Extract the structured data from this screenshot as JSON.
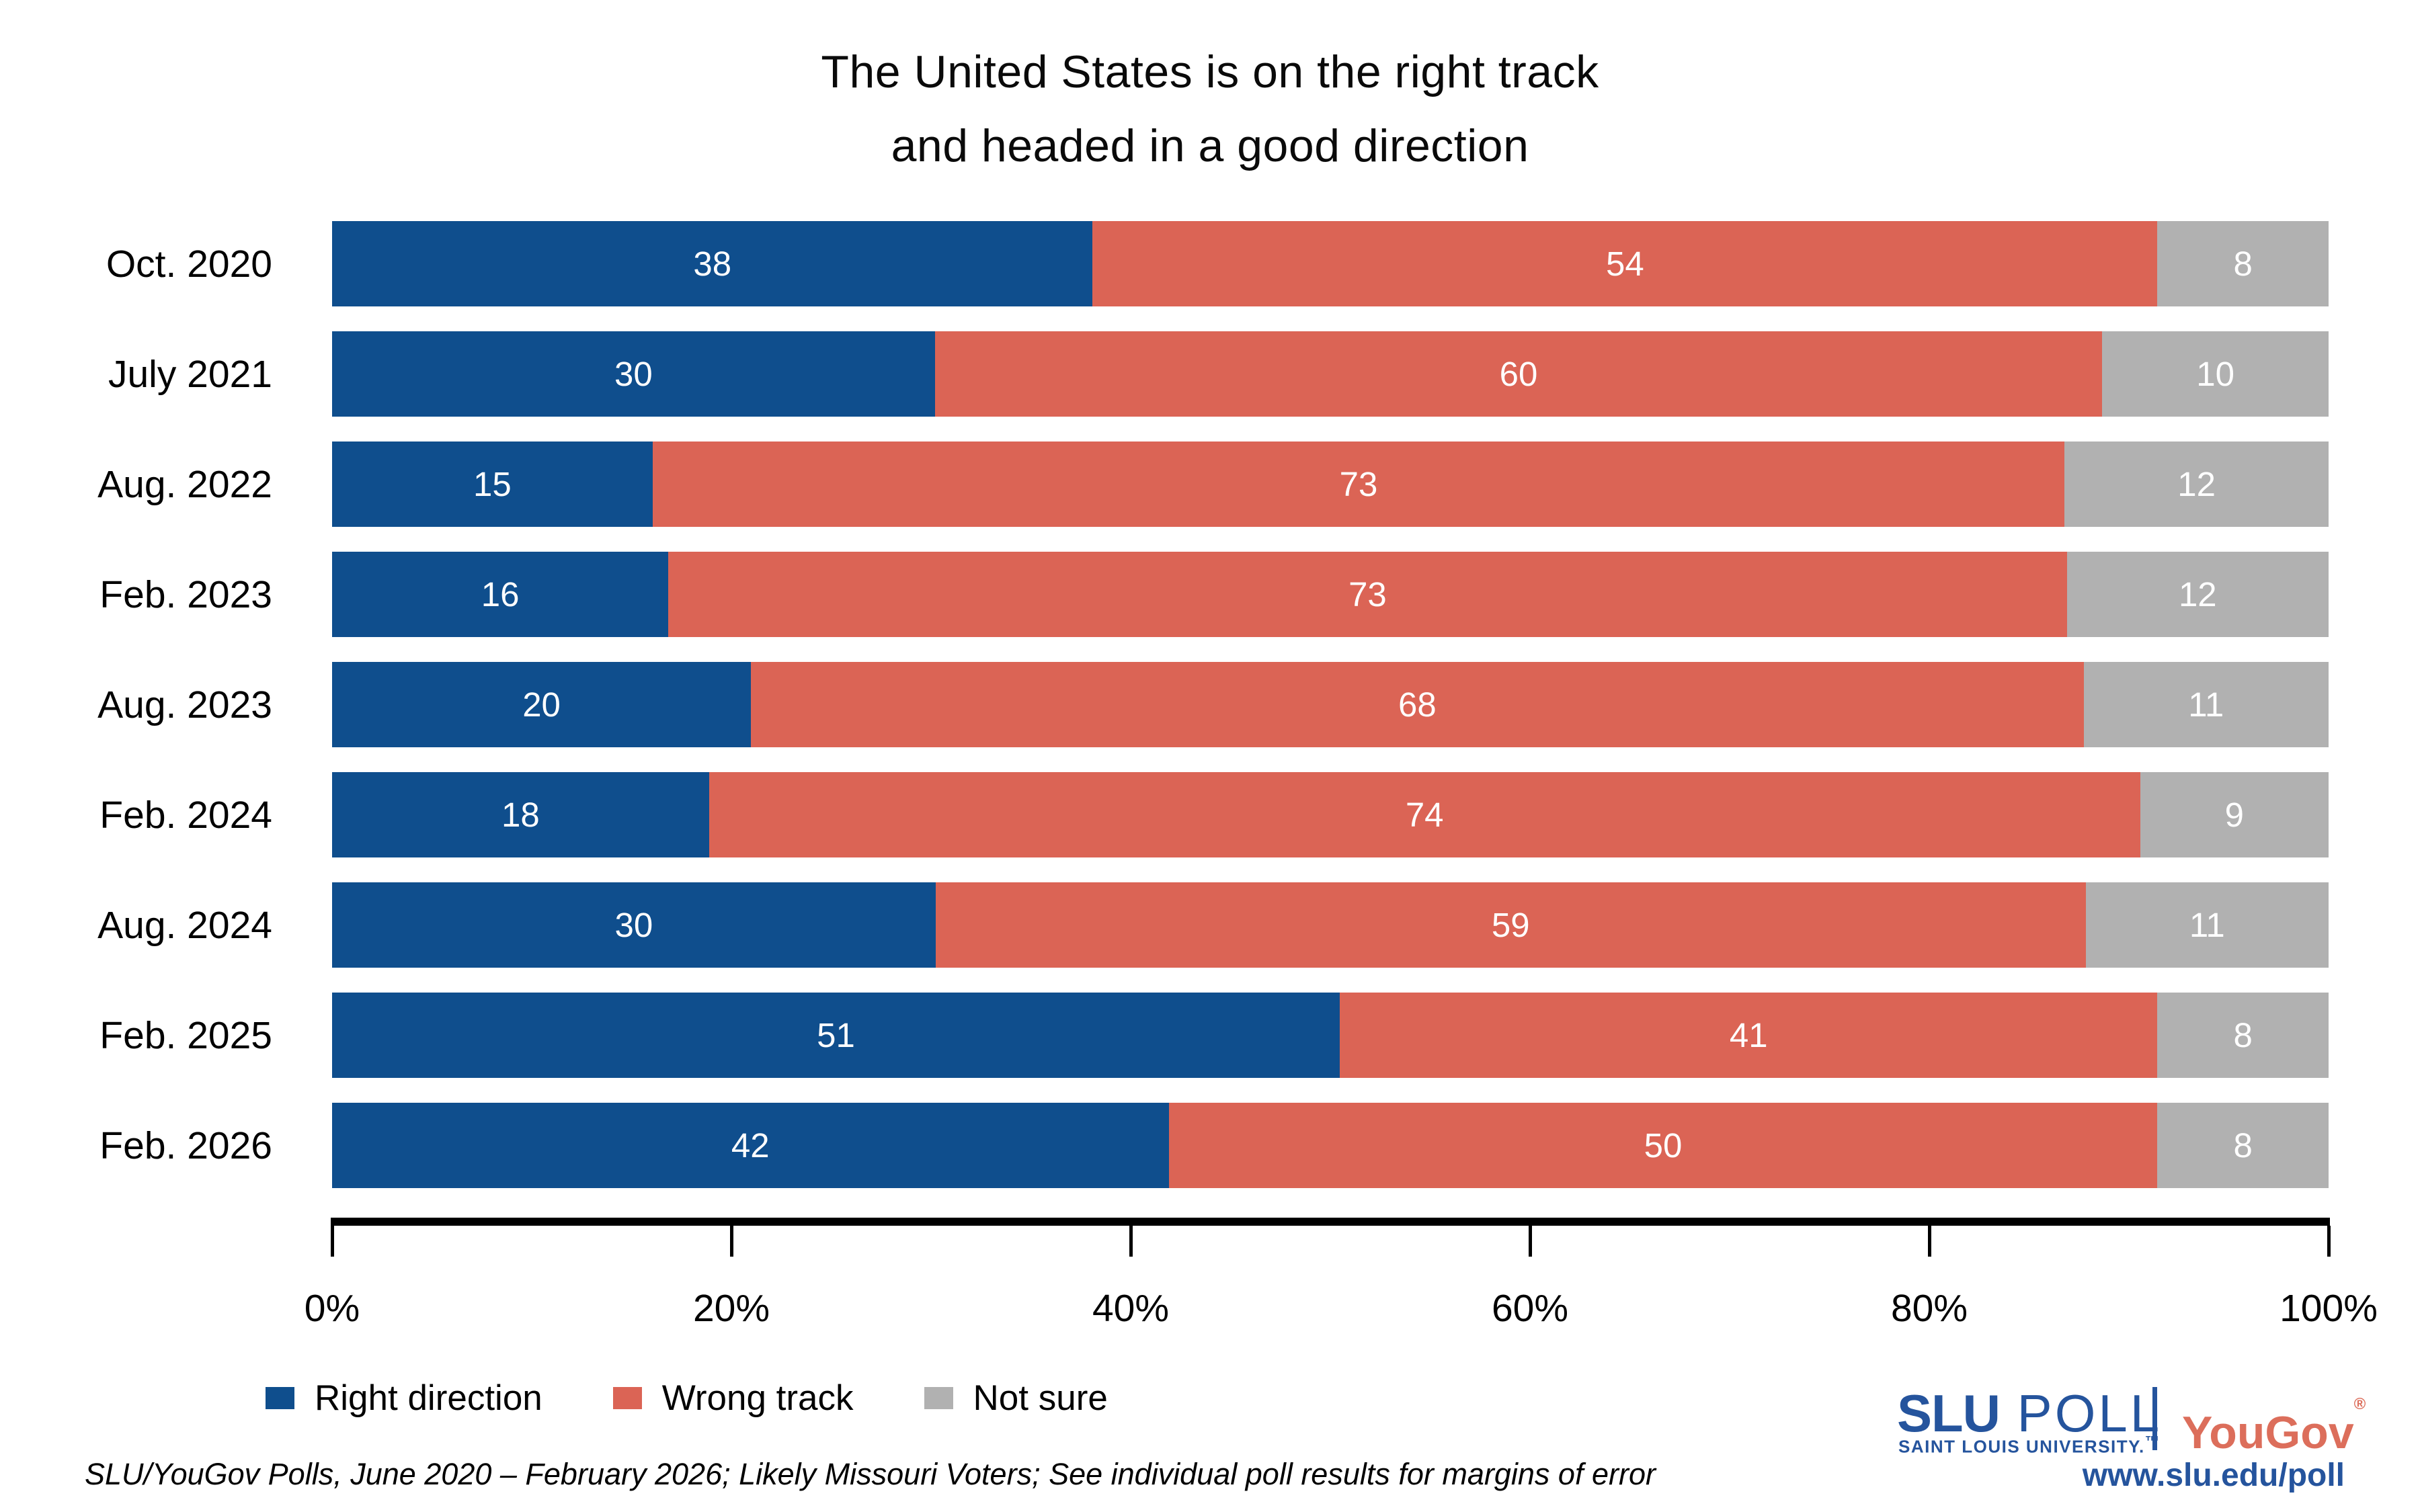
{
  "title": {
    "line1": "The United States is on the right track",
    "line2": "and headed in a good direction"
  },
  "chart_data": {
    "type": "bar",
    "orientation": "horizontal",
    "stacked": true,
    "normalized_to_100": true,
    "title": "The United States is on the right track and headed in a good direction",
    "categories": [
      "Oct. 2020",
      "July 2021",
      "Aug. 2022",
      "Feb. 2023",
      "Aug. 2023",
      "Feb. 2024",
      "Aug. 2024",
      "Feb. 2025",
      "Feb. 2026"
    ],
    "series": [
      {
        "name": "Right direction",
        "color": "#0F4E8D",
        "values": [
          38,
          30,
          15,
          16,
          20,
          18,
          30,
          51,
          42
        ]
      },
      {
        "name": "Wrong track",
        "color": "#DB6455",
        "values": [
          54,
          60,
          73,
          73,
          68,
          74,
          59,
          41,
          50
        ]
      },
      {
        "name": "Not sure",
        "color": "#B1B1B1",
        "values": [
          8,
          10,
          12,
          12,
          11,
          9,
          11,
          8,
          8
        ]
      }
    ],
    "x_ticks": [
      "0%",
      "20%",
      "40%",
      "60%",
      "80%",
      "100%"
    ],
    "xlim": [
      0,
      100
    ],
    "value_labels": "inside, white",
    "legend_position": "bottom-left",
    "grid": false
  },
  "footer": {
    "source_note": "SLU/YouGov Polls, June 2020 – February 2026; Likely Missouri Voters; See individual poll results for margins of error"
  },
  "branding": {
    "slu_poll_strong": "SLU",
    "slu_poll_rest": " POLL",
    "slu_sub": "SAINT LOUIS UNIVERSITY.",
    "slu_tm": "™",
    "yougov": "YouGov",
    "yougov_reg": "®",
    "url": "www.slu.edu/poll",
    "slu_blue": "#25549D",
    "yougov_red": "#DC6E5B"
  }
}
